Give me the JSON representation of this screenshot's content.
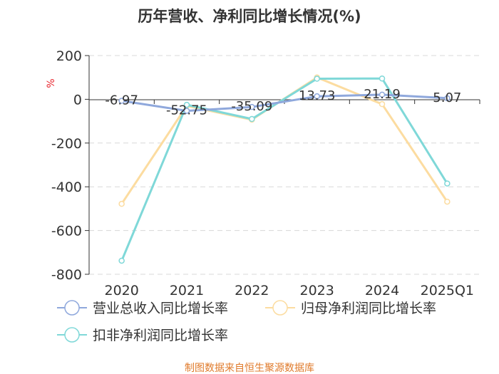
{
  "chart_data": {
    "type": "line",
    "title": "历年营收、净利同比增长情况(%)",
    "ylabel": "%",
    "categories": [
      "2020",
      "2021",
      "2022",
      "2023",
      "2024",
      "2025Q1"
    ],
    "ylim": [
      -800,
      200
    ],
    "yticks": [
      200,
      0,
      -200,
      -400,
      -600,
      -800
    ],
    "grid": true,
    "legend_position": "bottom",
    "series": [
      {
        "name": "营业总收入同比增长率",
        "color": "#8fa8dc",
        "values": [
          -6.97,
          -52.75,
          -35.09,
          13.73,
          21.19,
          5.07
        ],
        "labels": [
          "-6.97",
          "-52.75",
          "-35.09",
          "13.73",
          "21.19",
          "5.07"
        ]
      },
      {
        "name": "归母净利润同比增长率",
        "color": "#fcdca0",
        "values": [
          -478,
          -30,
          -93,
          100,
          -22,
          -468
        ]
      },
      {
        "name": "扣非净利润同比增长率",
        "color": "#7fd8d8",
        "values": [
          -738,
          -25,
          -90,
          94,
          95,
          -385
        ]
      }
    ]
  },
  "source": "制图数据来自恒生聚源数据库"
}
